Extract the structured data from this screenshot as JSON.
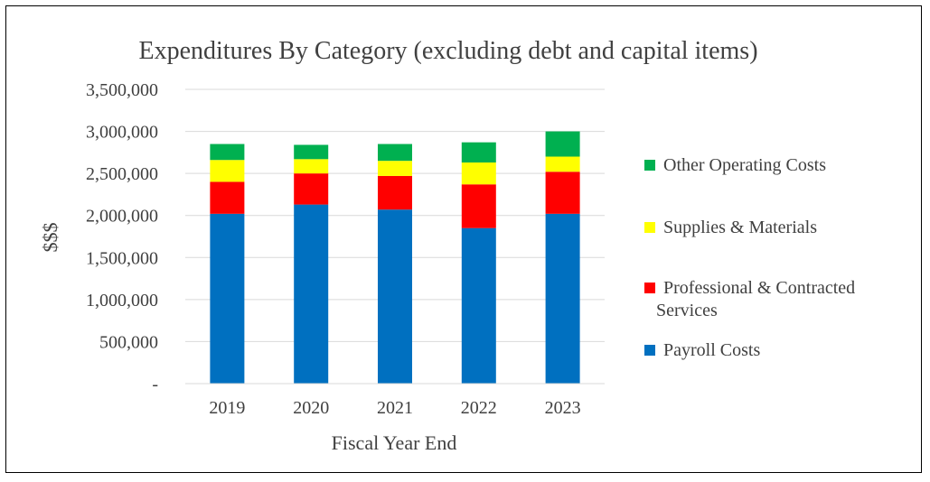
{
  "chart_data": {
    "type": "bar",
    "stacked": true,
    "title": "Expenditures By Category (excluding debt and capital items)",
    "xlabel": "Fiscal Year End",
    "ylabel": "$$$",
    "categories": [
      "2019",
      "2020",
      "2021",
      "2022",
      "2023"
    ],
    "ylim": [
      0,
      3500000
    ],
    "yticks": [
      0,
      500000,
      1000000,
      1500000,
      2000000,
      2500000,
      3000000,
      3500000
    ],
    "ytick_labels": [
      "-",
      "500,000",
      "1,000,000",
      "1,500,000",
      "2,000,000",
      "2,500,000",
      "3,000,000",
      "3,500,000"
    ],
    "grid": true,
    "legend_position": "right",
    "series": [
      {
        "name": "Payroll Costs",
        "color": "#0070C0",
        "values": [
          2020000,
          2130000,
          2070000,
          1850000,
          2020000
        ]
      },
      {
        "name": "Professional & Contracted Services",
        "color": "#FF0000",
        "values": [
          380000,
          370000,
          400000,
          520000,
          500000
        ]
      },
      {
        "name": "Supplies & Materials",
        "color": "#FFFF00",
        "values": [
          260000,
          170000,
          180000,
          260000,
          180000
        ]
      },
      {
        "name": "Other Operating Costs",
        "color": "#00B050",
        "values": [
          190000,
          170000,
          200000,
          240000,
          300000
        ]
      }
    ]
  }
}
